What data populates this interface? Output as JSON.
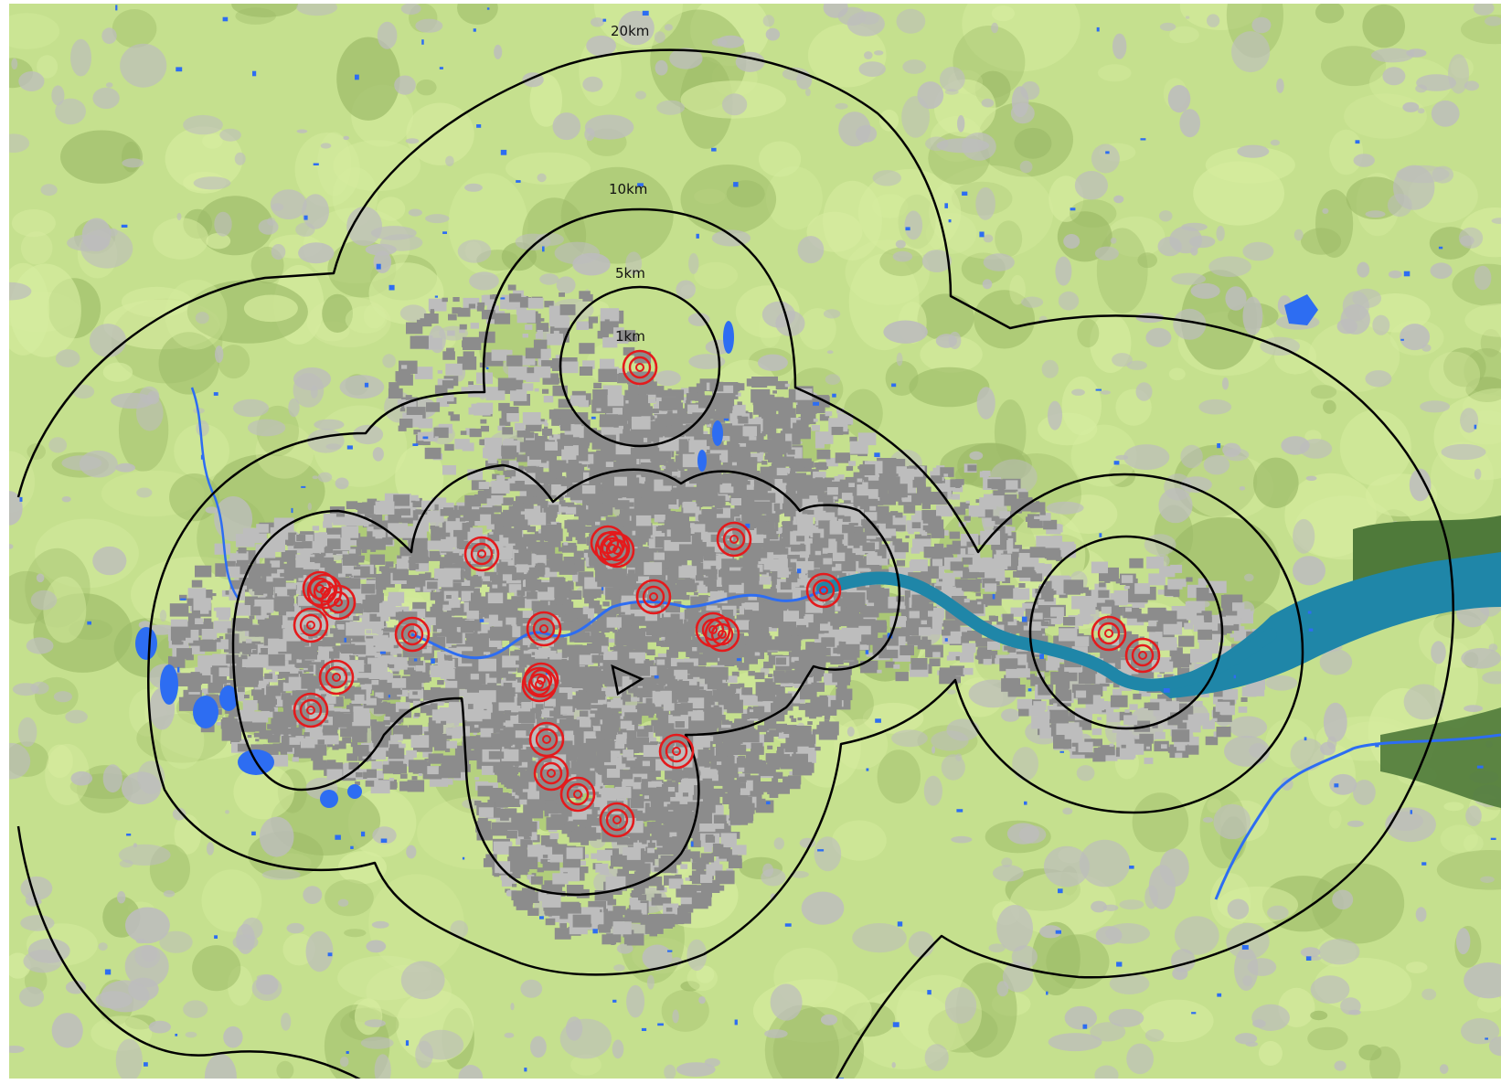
{
  "map": {
    "colors": {
      "land": "#c5e08e",
      "land_light": "#d6ec9f",
      "land_dark": "#9dbb68",
      "urban_dense": "#8c8c8c",
      "urban_sparse": "#bdbdbd",
      "water": "#2d6df2",
      "estuary": "#1f86a8",
      "marsh": "#4f7a3a",
      "buffer_line": "#000000",
      "site_rings": "#e41a1c"
    },
    "buffer_labels": {
      "km20": "20km",
      "km10": "10km",
      "km5": "5km",
      "km1": "1km"
    },
    "layers": [
      "land-cover",
      "river-thames",
      "buffer-zones",
      "monitoring-sites",
      "centroid-marker"
    ],
    "site_count": 27
  }
}
